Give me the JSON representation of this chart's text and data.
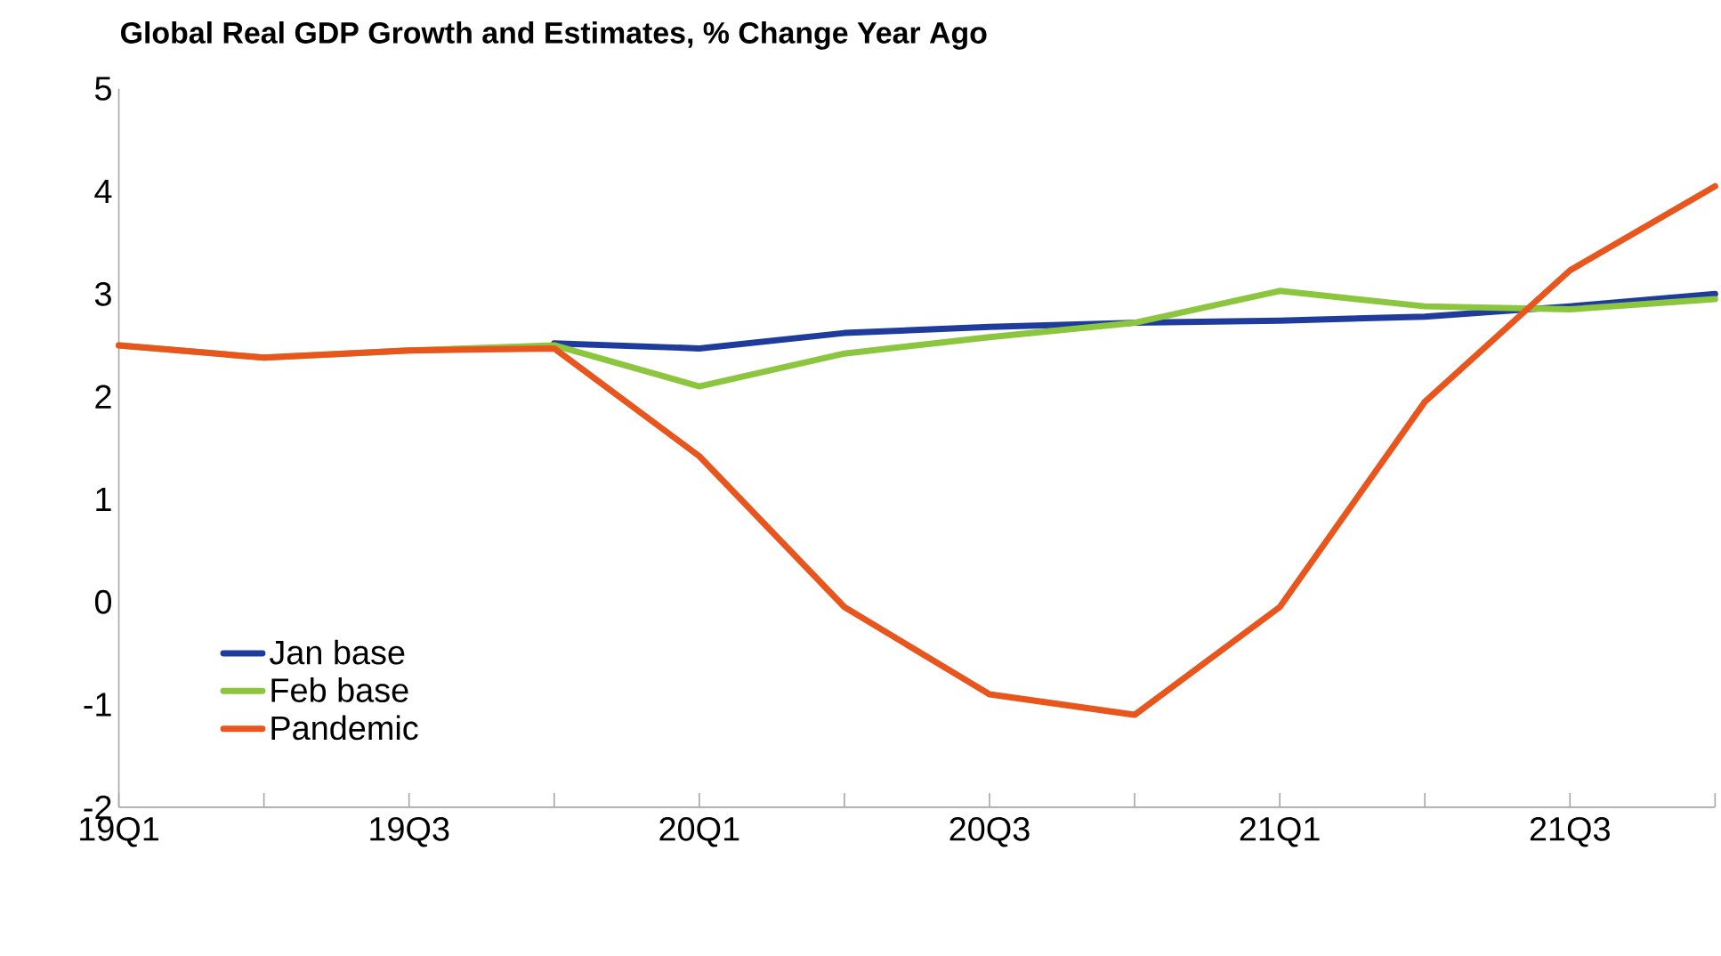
{
  "chart_data": {
    "type": "line",
    "title": "Global Real GDP Growth and Estimates, % Change Year Ago",
    "categories": [
      "19Q1",
      null,
      "19Q3",
      null,
      "20Q1",
      null,
      "20Q3",
      null,
      "21Q1",
      null,
      "21Q3",
      null
    ],
    "series": [
      {
        "name": "Jan base",
        "color": "#1f3c9c",
        "values": [
          null,
          null,
          null,
          2.52,
          2.47,
          2.62,
          2.68,
          2.72,
          2.74,
          2.78,
          2.88,
          3.0
        ]
      },
      {
        "name": "Feb base",
        "color": "#8cc63f",
        "values": [
          2.5,
          2.38,
          2.45,
          2.5,
          2.1,
          2.42,
          2.58,
          2.72,
          3.03,
          2.88,
          2.85,
          2.95
        ]
      },
      {
        "name": "Pandemic",
        "color": "#e8561e",
        "values": [
          2.5,
          2.38,
          2.45,
          2.47,
          1.42,
          -0.05,
          -0.9,
          -1.1,
          -0.05,
          1.95,
          3.23,
          4.05
        ]
      }
    ],
    "ylim": [
      -2,
      5
    ],
    "yticks": [
      -2,
      -1,
      0,
      1,
      2,
      3,
      4,
      5
    ],
    "legend": "bottom left"
  }
}
